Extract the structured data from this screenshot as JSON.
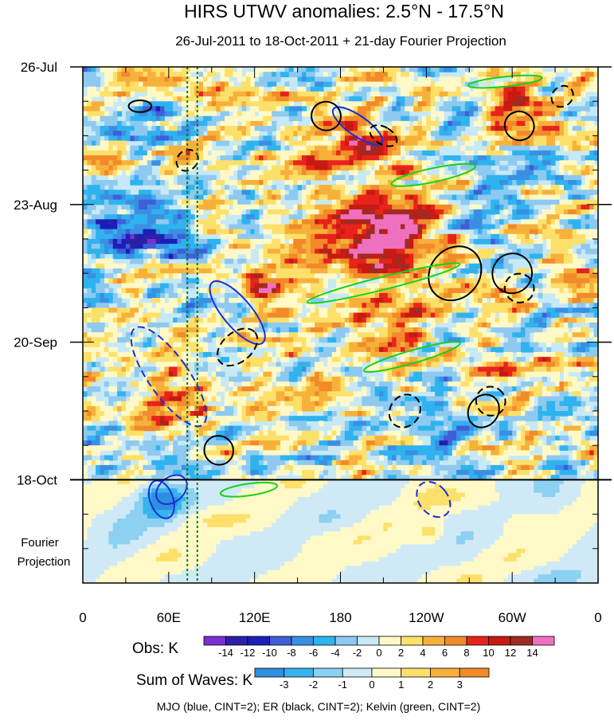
{
  "chart_data": {
    "type": "heatmap",
    "title": "HIRS UTWV anomalies: 2.5°N - 17.5°N",
    "subtitle": "26-Jul-2011 to 18-Oct-2011 + 21-day Fourier Projection",
    "y_axis": {
      "tick_labels": [
        "26-Jul",
        "23-Aug",
        "20-Sep",
        "18-Oct"
      ],
      "tick_days": [
        0,
        28,
        56,
        84
      ],
      "range_days": [
        0,
        105
      ],
      "projection_label_line1": "Fourier",
      "projection_label_line2": "Projection"
    },
    "x_axis": {
      "tick_labels": [
        "0",
        "60E",
        "120E",
        "180",
        "120W",
        "60W",
        "0"
      ],
      "tick_lons": [
        0,
        60,
        120,
        180,
        240,
        300,
        360
      ],
      "range": [
        0,
        360
      ]
    },
    "observed_end_label": "18-Oct",
    "obs_colorbar": {
      "label": "Obs: K",
      "levels": [
        "-14",
        "-12",
        "-10",
        "-8",
        "-6",
        "-4",
        "-2",
        "0",
        "2",
        "4",
        "6",
        "8",
        "10",
        "12",
        "14"
      ],
      "colors": [
        "#7b2fd0",
        "#2c1fa8",
        "#1b1fb8",
        "#3f5ed8",
        "#3a8fe3",
        "#2fb3ef",
        "#8ec9f0",
        "#c7e9f6",
        "#fff9c8",
        "#fde06a",
        "#f7b13b",
        "#f28a2a",
        "#e8231c",
        "#c61a12",
        "#9f2b23",
        "#f070c0"
      ]
    },
    "waves_colorbar": {
      "label": "Sum of Waves: K",
      "levels": [
        "-3",
        "-2",
        "-1",
        "0",
        "1",
        "2",
        "3"
      ],
      "colors": [
        "#2f8fe0",
        "#36b4ee",
        "#8cd0f2",
        "#cfeaf6",
        "#fff9c8",
        "#fde06a",
        "#f7b13b",
        "#f28a2a"
      ]
    },
    "contours": {
      "legend": "MJO (blue, CINT=2); ER (black, CINT=2); Kelvin (green, CINT=2)",
      "mjo_color": "#1a2fd6",
      "er_color": "#000000",
      "kelvin_color": "#16d21a"
    },
    "reference_lines_lon": [
      73,
      80
    ]
  }
}
